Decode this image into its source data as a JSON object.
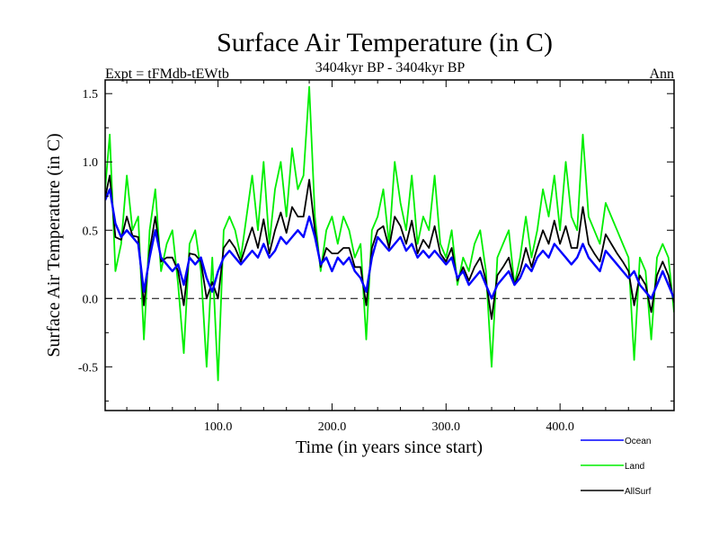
{
  "chart_data": {
    "type": "line",
    "title": "Surface Air Temperature (in C)",
    "subtitle": "3404kyr BP - 3404kyr BP",
    "left_label": "Expt = tFMdb-tEWtb",
    "right_label": "Ann",
    "xlabel": "Time (in years since start)",
    "ylabel": "Surface Air Temperature (in C)",
    "xlim": [
      1,
      500
    ],
    "ylim": [
      -0.82,
      1.6
    ],
    "x_ticks": [
      100,
      200,
      300,
      400
    ],
    "x_tick_labels": [
      "100.0",
      "200.0",
      "300.0",
      "400.0"
    ],
    "y_ticks": [
      -0.5,
      0.0,
      0.5,
      1.0,
      1.5
    ],
    "y_tick_labels": [
      "-0.5",
      "0.0",
      "0.5",
      "1.0",
      "1.5"
    ],
    "reference_line": 0.0,
    "legend_position": "bottom-right",
    "series": [
      {
        "name": "Ocean",
        "color": "#0000ff",
        "x": [
          1,
          5,
          10,
          15,
          20,
          25,
          30,
          35,
          40,
          45,
          50,
          55,
          60,
          65,
          70,
          75,
          80,
          85,
          90,
          95,
          100,
          105,
          110,
          115,
          120,
          125,
          130,
          135,
          140,
          145,
          150,
          155,
          160,
          165,
          170,
          175,
          180,
          185,
          190,
          195,
          200,
          205,
          210,
          215,
          220,
          225,
          230,
          235,
          240,
          245,
          250,
          255,
          260,
          265,
          270,
          275,
          280,
          285,
          290,
          295,
          300,
          305,
          310,
          315,
          320,
          325,
          330,
          335,
          340,
          345,
          350,
          355,
          360,
          365,
          370,
          375,
          380,
          385,
          390,
          395,
          400,
          405,
          410,
          415,
          420,
          425,
          430,
          435,
          440,
          445,
          450,
          455,
          460,
          465,
          470,
          475,
          480,
          485,
          490,
          495,
          500
        ],
        "values": [
          0.72,
          0.8,
          0.55,
          0.45,
          0.5,
          0.45,
          0.4,
          0.05,
          0.3,
          0.5,
          0.3,
          0.25,
          0.2,
          0.25,
          0.1,
          0.3,
          0.25,
          0.3,
          0.15,
          0.05,
          0.2,
          0.3,
          0.35,
          0.3,
          0.25,
          0.3,
          0.35,
          0.3,
          0.4,
          0.3,
          0.35,
          0.45,
          0.4,
          0.45,
          0.5,
          0.45,
          0.6,
          0.45,
          0.25,
          0.3,
          0.2,
          0.3,
          0.25,
          0.3,
          0.2,
          0.15,
          0.05,
          0.3,
          0.45,
          0.4,
          0.35,
          0.4,
          0.45,
          0.35,
          0.4,
          0.3,
          0.35,
          0.3,
          0.35,
          0.3,
          0.25,
          0.3,
          0.15,
          0.2,
          0.1,
          0.15,
          0.2,
          0.1,
          0.0,
          0.1,
          0.15,
          0.2,
          0.1,
          0.15,
          0.25,
          0.2,
          0.3,
          0.35,
          0.3,
          0.4,
          0.35,
          0.3,
          0.25,
          0.3,
          0.4,
          0.3,
          0.25,
          0.2,
          0.35,
          0.3,
          0.25,
          0.2,
          0.15,
          0.2,
          0.1,
          0.05,
          0.0,
          0.1,
          0.2,
          0.1,
          0.0
        ]
      },
      {
        "name": "Land",
        "color": "#00ee00",
        "x": [
          1,
          5,
          10,
          15,
          20,
          25,
          30,
          35,
          40,
          45,
          50,
          55,
          60,
          65,
          70,
          75,
          80,
          85,
          90,
          95,
          100,
          105,
          110,
          115,
          120,
          125,
          130,
          135,
          140,
          145,
          150,
          155,
          160,
          165,
          170,
          175,
          180,
          185,
          190,
          195,
          200,
          205,
          210,
          215,
          220,
          225,
          230,
          235,
          240,
          245,
          250,
          255,
          260,
          265,
          270,
          275,
          280,
          285,
          290,
          295,
          300,
          305,
          310,
          315,
          320,
          325,
          330,
          335,
          340,
          345,
          350,
          355,
          360,
          365,
          370,
          375,
          380,
          385,
          390,
          395,
          400,
          405,
          410,
          415,
          420,
          425,
          430,
          435,
          440,
          445,
          450,
          455,
          460,
          465,
          470,
          475,
          480,
          485,
          490,
          495,
          500
        ],
        "values": [
          0.8,
          1.2,
          0.2,
          0.4,
          0.9,
          0.5,
          0.6,
          -0.3,
          0.5,
          0.8,
          0.2,
          0.4,
          0.5,
          0.1,
          -0.4,
          0.4,
          0.5,
          0.2,
          -0.5,
          0.3,
          -0.6,
          0.5,
          0.6,
          0.5,
          0.3,
          0.6,
          0.9,
          0.5,
          1.0,
          0.4,
          0.8,
          1.0,
          0.6,
          1.1,
          0.8,
          0.9,
          1.55,
          0.6,
          0.2,
          0.5,
          0.6,
          0.4,
          0.6,
          0.5,
          0.3,
          0.4,
          -0.3,
          0.5,
          0.6,
          0.8,
          0.4,
          1.0,
          0.7,
          0.5,
          0.9,
          0.4,
          0.6,
          0.5,
          0.9,
          0.4,
          0.3,
          0.5,
          0.1,
          0.3,
          0.2,
          0.4,
          0.5,
          0.2,
          -0.5,
          0.3,
          0.4,
          0.5,
          0.1,
          0.3,
          0.6,
          0.3,
          0.5,
          0.8,
          0.6,
          0.9,
          0.5,
          1.0,
          0.6,
          0.5,
          1.2,
          0.6,
          0.5,
          0.4,
          0.7,
          0.6,
          0.5,
          0.4,
          0.3,
          -0.45,
          0.3,
          0.2,
          -0.3,
          0.3,
          0.4,
          0.3,
          -0.1
        ]
      },
      {
        "name": "AllSurf",
        "color": "#000000",
        "x": [
          1,
          5,
          10,
          15,
          20,
          25,
          30,
          35,
          40,
          45,
          50,
          55,
          60,
          65,
          70,
          75,
          80,
          85,
          90,
          95,
          100,
          105,
          110,
          115,
          120,
          125,
          130,
          135,
          140,
          145,
          150,
          155,
          160,
          165,
          170,
          175,
          180,
          185,
          190,
          195,
          200,
          205,
          210,
          215,
          220,
          225,
          230,
          235,
          240,
          245,
          250,
          255,
          260,
          265,
          270,
          275,
          280,
          285,
          290,
          295,
          300,
          305,
          310,
          315,
          320,
          325,
          330,
          335,
          340,
          345,
          350,
          355,
          360,
          365,
          370,
          375,
          380,
          385,
          390,
          395,
          400,
          405,
          410,
          415,
          420,
          425,
          430,
          435,
          440,
          445,
          450,
          455,
          460,
          465,
          470,
          475,
          480,
          485,
          490,
          495,
          500
        ],
        "values": [
          0.74,
          0.9,
          0.45,
          0.43,
          0.6,
          0.46,
          0.45,
          -0.05,
          0.35,
          0.6,
          0.27,
          0.3,
          0.3,
          0.2,
          -0.05,
          0.33,
          0.32,
          0.27,
          0.0,
          0.12,
          0.0,
          0.37,
          0.43,
          0.37,
          0.27,
          0.4,
          0.52,
          0.37,
          0.58,
          0.33,
          0.5,
          0.63,
          0.48,
          0.67,
          0.6,
          0.6,
          0.87,
          0.5,
          0.23,
          0.37,
          0.33,
          0.33,
          0.37,
          0.37,
          0.23,
          0.23,
          -0.05,
          0.37,
          0.5,
          0.53,
          0.37,
          0.6,
          0.53,
          0.4,
          0.57,
          0.33,
          0.43,
          0.37,
          0.53,
          0.33,
          0.27,
          0.37,
          0.13,
          0.23,
          0.13,
          0.23,
          0.3,
          0.13,
          -0.15,
          0.17,
          0.23,
          0.3,
          0.1,
          0.2,
          0.37,
          0.23,
          0.37,
          0.5,
          0.4,
          0.57,
          0.4,
          0.53,
          0.37,
          0.37,
          0.67,
          0.4,
          0.33,
          0.27,
          0.47,
          0.4,
          0.33,
          0.27,
          0.2,
          -0.05,
          0.17,
          0.1,
          -0.1,
          0.17,
          0.27,
          0.17,
          -0.03
        ]
      }
    ]
  }
}
